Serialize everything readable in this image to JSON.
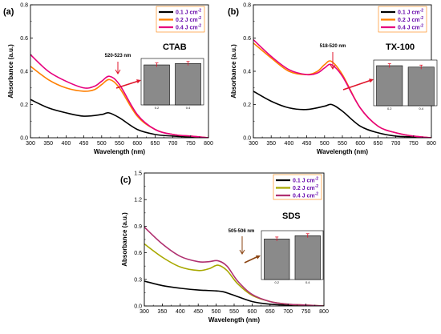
{
  "chart_data": [
    {
      "type": "line",
      "panel_label": "(a)",
      "surfactant": "CTAB",
      "annotation": "520-523 nm",
      "xlabel": "Wavelength (nm)",
      "ylabel": "Absorbance (a.u.)",
      "xlim": [
        300,
        800
      ],
      "ylim": [
        0,
        0.8
      ],
      "xticks": [
        300,
        350,
        400,
        450,
        500,
        550,
        600,
        650,
        700,
        750,
        800
      ],
      "yticks": [
        0.0,
        0.2,
        0.4,
        0.6,
        0.8
      ],
      "legend_position": "top-right",
      "series": [
        {
          "name": "0.1 J cm",
          "sup": "-2",
          "color": "#000000",
          "x": [
            300,
            350,
            400,
            450,
            500,
            520,
            550,
            600,
            650,
            700,
            750,
            800
          ],
          "y": [
            0.23,
            0.18,
            0.15,
            0.13,
            0.14,
            0.15,
            0.12,
            0.05,
            0.02,
            0.01,
            0.005,
            0.0
          ]
        },
        {
          "name": "0.2 J cm",
          "sup": "-2",
          "color": "#ff7f00",
          "x": [
            300,
            350,
            400,
            450,
            480,
            500,
            522,
            550,
            600,
            650,
            700,
            750,
            800
          ],
          "y": [
            0.43,
            0.35,
            0.3,
            0.28,
            0.29,
            0.32,
            0.35,
            0.3,
            0.13,
            0.05,
            0.02,
            0.01,
            0.0
          ]
        },
        {
          "name": "0.4 J cm",
          "sup": "-2",
          "color": "#e6007e",
          "x": [
            300,
            350,
            400,
            450,
            480,
            500,
            522,
            550,
            600,
            650,
            700,
            750,
            800
          ],
          "y": [
            0.5,
            0.4,
            0.34,
            0.3,
            0.31,
            0.34,
            0.37,
            0.32,
            0.14,
            0.05,
            0.02,
            0.01,
            0.0
          ]
        }
      ],
      "inset": {
        "type": "bar",
        "categories": [
          "0.2",
          "0.4"
        ],
        "values": [
          0.56,
          0.58
        ],
        "ylim": [
          0,
          0.65
        ]
      }
    },
    {
      "type": "line",
      "panel_label": "(b)",
      "surfactant": "TX-100",
      "annotation": "518-520 nm",
      "xlabel": "Wavelength (nm)",
      "ylabel": "Absorbance (a.u.)",
      "xlim": [
        300,
        800
      ],
      "ylim": [
        0,
        0.8
      ],
      "xticks": [
        300,
        350,
        400,
        450,
        500,
        550,
        600,
        650,
        700,
        750,
        800
      ],
      "yticks": [
        0.0,
        0.2,
        0.4,
        0.6,
        0.8
      ],
      "legend_position": "top-right",
      "series": [
        {
          "name": "0.1 J cm",
          "sup": "-2",
          "color": "#000000",
          "x": [
            300,
            350,
            400,
            450,
            500,
            520,
            550,
            600,
            650,
            700,
            750,
            800
          ],
          "y": [
            0.28,
            0.22,
            0.18,
            0.17,
            0.19,
            0.2,
            0.16,
            0.07,
            0.03,
            0.01,
            0.005,
            0.0
          ]
        },
        {
          "name": "0.2 J cm",
          "sup": "-2",
          "color": "#ff7f00",
          "x": [
            300,
            350,
            400,
            450,
            480,
            500,
            519,
            550,
            600,
            650,
            700,
            750,
            800
          ],
          "y": [
            0.57,
            0.48,
            0.4,
            0.38,
            0.4,
            0.44,
            0.46,
            0.38,
            0.18,
            0.07,
            0.03,
            0.01,
            0.0
          ]
        },
        {
          "name": "0.4 J cm",
          "sup": "-2",
          "color": "#e6007e",
          "x": [
            300,
            350,
            400,
            450,
            480,
            500,
            519,
            550,
            600,
            650,
            700,
            750,
            800
          ],
          "y": [
            0.59,
            0.49,
            0.41,
            0.38,
            0.39,
            0.42,
            0.44,
            0.37,
            0.18,
            0.07,
            0.03,
            0.01,
            0.0
          ]
        }
      ],
      "inset": {
        "type": "bar",
        "categories": [
          "0.2",
          "0.4"
        ],
        "values": [
          0.57,
          0.55
        ],
        "ylim": [
          0,
          0.65
        ]
      }
    },
    {
      "type": "line",
      "panel_label": "(c)",
      "surfactant": "SDS",
      "annotation": "505-506 nm",
      "xlabel": "Wavelength (nm)",
      "ylabel": "Absorbance (a.u.)",
      "xlim": [
        300,
        800
      ],
      "ylim": [
        0,
        1.5
      ],
      "xticks": [
        300,
        350,
        400,
        450,
        500,
        550,
        600,
        650,
        700,
        750,
        800
      ],
      "yticks": [
        0.0,
        0.3,
        0.6,
        0.9,
        1.2,
        1.5
      ],
      "legend_position": "top-right",
      "series": [
        {
          "name": "0.1 J cm",
          "sup": "-2",
          "color": "#000000",
          "x": [
            300,
            350,
            400,
            450,
            500,
            520,
            550,
            600,
            650,
            700,
            750,
            800
          ],
          "y": [
            0.28,
            0.23,
            0.2,
            0.18,
            0.17,
            0.16,
            0.12,
            0.05,
            0.02,
            0.01,
            0.005,
            0.0
          ]
        },
        {
          "name": "0.2 J cm",
          "sup": "-2",
          "color": "#a8a800",
          "x": [
            300,
            350,
            400,
            450,
            480,
            505,
            530,
            560,
            600,
            650,
            700,
            750,
            800
          ],
          "y": [
            0.7,
            0.55,
            0.44,
            0.4,
            0.42,
            0.46,
            0.4,
            0.25,
            0.12,
            0.05,
            0.02,
            0.01,
            0.0
          ]
        },
        {
          "name": "0.4 J cm",
          "sup": "-2",
          "color": "#b03070",
          "x": [
            300,
            350,
            400,
            450,
            480,
            505,
            530,
            560,
            600,
            650,
            700,
            750,
            800
          ],
          "y": [
            0.89,
            0.7,
            0.56,
            0.5,
            0.5,
            0.51,
            0.45,
            0.28,
            0.13,
            0.05,
            0.02,
            0.01,
            0.0
          ]
        }
      ],
      "inset": {
        "type": "bar",
        "categories": [
          "0.2",
          "0.4"
        ],
        "values": [
          0.73,
          0.79
        ],
        "ylim": [
          0,
          0.88
        ]
      }
    }
  ]
}
